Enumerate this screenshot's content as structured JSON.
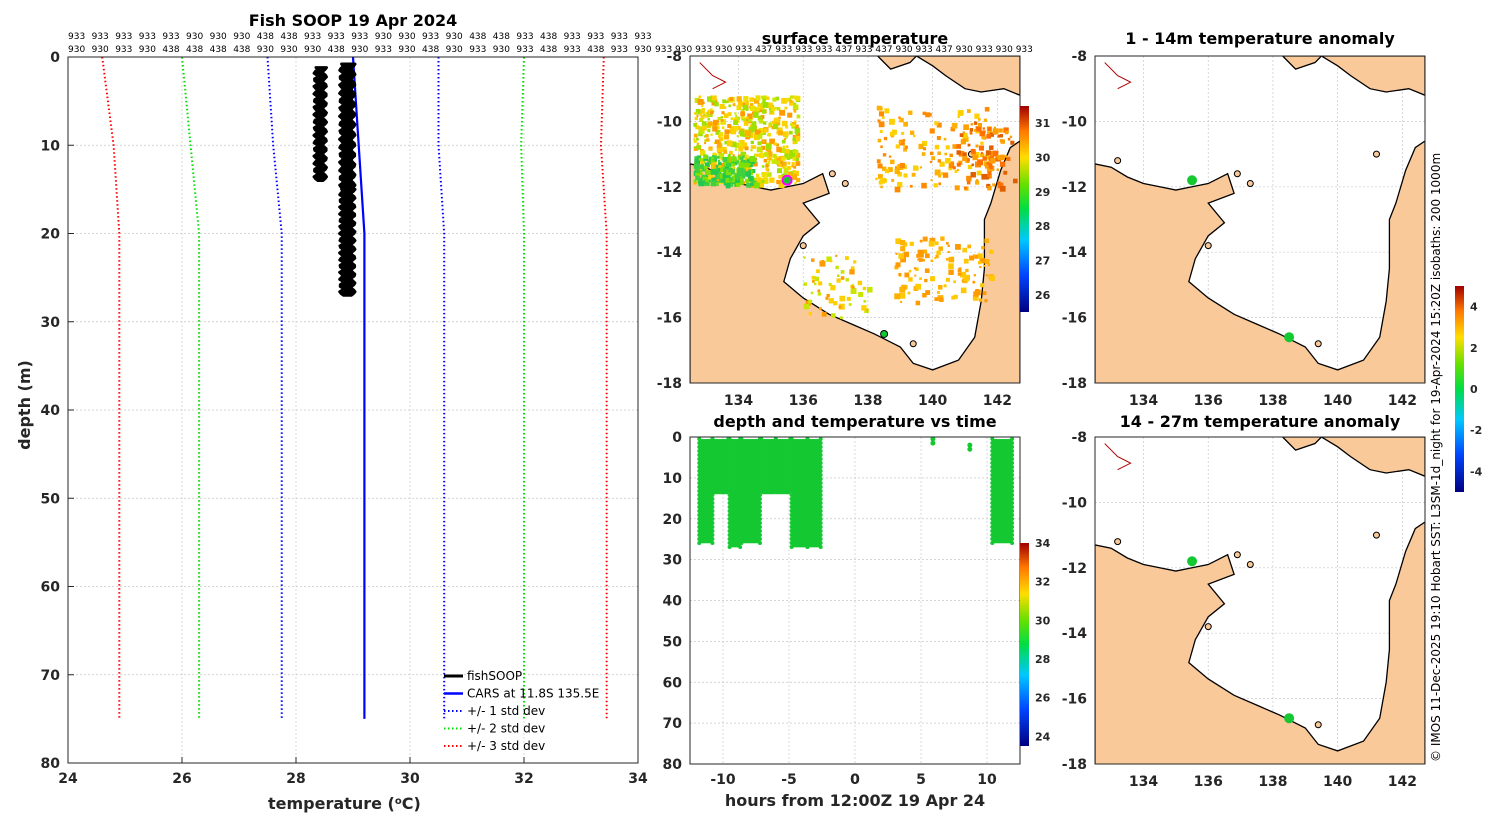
{
  "colors": {
    "cars": "#0000ff",
    "std1": "#0000ff",
    "std2": "#00dd00",
    "std3": "#ff0000",
    "fish": "#000000",
    "land": "#f9c99a",
    "obs": "#14c832"
  },
  "profile": {
    "chart_data": {
      "type": "line",
      "title": "Fish SOOP 19 Apr 2024",
      "xlabel": "temperature (°C)",
      "xlabel_main": "temperature (",
      "xlabel_sup": "o",
      "xlabel_end": "C)",
      "ylabel": "depth (m)",
      "xlim": [
        24,
        34
      ],
      "ylim": [
        80,
        0
      ],
      "xticks": [
        "24",
        "26",
        "28",
        "30",
        "32",
        "34"
      ],
      "yticks": [
        "0",
        "10",
        "20",
        "30",
        "40",
        "50",
        "60",
        "70",
        "80"
      ],
      "header_row1": [
        "933",
        "933",
        "933",
        "933",
        "933",
        "930",
        "930",
        "930",
        "438",
        "438",
        "933",
        "933",
        "933",
        "930",
        "930",
        "933",
        "930",
        "438",
        "438",
        "933",
        "438",
        "933",
        "933",
        "933",
        "933"
      ],
      "header_row2": [
        "930",
        "930",
        "933",
        "930",
        "438",
        "438",
        "438",
        "438",
        "930",
        "930",
        "930",
        "438",
        "930",
        "933",
        "930",
        "438",
        "930",
        "933",
        "930",
        "933",
        "438",
        "933",
        "438",
        "933",
        "930"
      ],
      "header_row2_overflow": "933 930 933 930 933 437 933 933 933 437 933 437 930 933 437 930 933 930 933",
      "series": [
        {
          "name": "CARS at 11.8S 135.5E",
          "style": "solid",
          "color": "#0000ff",
          "depth": [
            0,
            10,
            20,
            30,
            75
          ],
          "temp": [
            29.0,
            29.1,
            29.2,
            29.2,
            29.2
          ]
        },
        {
          "name": "+/- 1 std dev",
          "style": "dotted",
          "color": "#0000ff",
          "depth": [
            0,
            10,
            20,
            30,
            75
          ],
          "temp": [
            27.5,
            27.6,
            27.75,
            27.75,
            27.75
          ]
        },
        {
          "name": "+/- 1 std dev upper",
          "style": "dotted",
          "color": "#0000ff",
          "depth": [
            0,
            10,
            20,
            30,
            75
          ],
          "temp": [
            30.5,
            30.5,
            30.6,
            30.6,
            30.6
          ]
        },
        {
          "name": "+/- 2 std dev",
          "style": "dotted",
          "color": "#00dd00",
          "depth": [
            0,
            10,
            20,
            30,
            75
          ],
          "temp": [
            26.0,
            26.15,
            26.3,
            26.3,
            26.3
          ]
        },
        {
          "name": "+/- 2 std dev upper",
          "style": "dotted",
          "color": "#00dd00",
          "depth": [
            0,
            10,
            20,
            30,
            75
          ],
          "temp": [
            32.0,
            31.95,
            32.0,
            32.0,
            32.0
          ]
        },
        {
          "name": "+/- 3 std dev",
          "style": "dotted",
          "color": "#ff0000",
          "depth": [
            0,
            10,
            20,
            30,
            75
          ],
          "temp": [
            24.6,
            24.8,
            24.9,
            24.9,
            24.9
          ]
        },
        {
          "name": "+/- 3 std dev upper",
          "style": "dotted",
          "color": "#ff0000",
          "depth": [
            0,
            10,
            20,
            30,
            75
          ],
          "temp": [
            33.4,
            33.35,
            33.45,
            33.45,
            33.45
          ]
        }
      ],
      "fish_bands": [
        {
          "tmin": 28.35,
          "tmax": 28.5,
          "dmin": 1.2,
          "dmax": 14
        },
        {
          "tmin": 28.8,
          "tmax": 29.0,
          "dmin": 0.8,
          "dmax": 15
        },
        {
          "tmin": 28.8,
          "tmax": 29.0,
          "dmin": 15,
          "dmax": 27
        }
      ],
      "legend": [
        "fishSOOP",
        "CARS at 11.8S 135.5E",
        "+/- 1 std dev",
        "+/- 2 std dev",
        "+/- 3 std dev"
      ]
    }
  },
  "surface": {
    "title": "surface temperature",
    "xticks": [
      "134",
      "136",
      "138",
      "140",
      "142"
    ],
    "yticks": [
      "-8",
      "-10",
      "-12",
      "-14",
      "-16",
      "-18"
    ],
    "xlim": [
      132.5,
      142.7
    ],
    "ylim": [
      -18,
      -8
    ],
    "colorbar": {
      "ticks": [
        "31",
        "30",
        "29",
        "28",
        "27",
        "26"
      ],
      "range": [
        25.5,
        31.5
      ]
    },
    "marker_ring": {
      "lon": 135.5,
      "lat": -11.8
    },
    "marker_dot": {
      "lon": 138.5,
      "lat": -16.5
    }
  },
  "depthtime": {
    "chart_data": {
      "type": "scatter",
      "title": "depth and temperature vs time",
      "xlabel": "hours from 12:00Z 19 Apr 24",
      "xticks": [
        "-10",
        "-5",
        "0",
        "5",
        "10"
      ],
      "yticks": [
        "0",
        "10",
        "20",
        "30",
        "40",
        "50",
        "60",
        "70",
        "80"
      ],
      "xlim": [
        -12.5,
        12.5
      ],
      "ylim": [
        80,
        0
      ],
      "colorbar": {
        "ticks": [
          "34",
          "32",
          "30",
          "28",
          "26",
          "24"
        ],
        "range": [
          23.5,
          34
        ]
      },
      "casts": [
        {
          "t0": -11.8,
          "t1": -10.8,
          "dmax": 26
        },
        {
          "t0": -10.8,
          "t1": -9.6,
          "dmax": 14
        },
        {
          "t0": -9.5,
          "t1": -8.7,
          "dmax": 27
        },
        {
          "t0": -8.6,
          "t1": -7.2,
          "dmax": 26
        },
        {
          "t0": -7.1,
          "t1": -6.0,
          "dmax": 14
        },
        {
          "t0": -6.0,
          "t1": -4.9,
          "dmax": 14
        },
        {
          "t0": -4.8,
          "t1": -3.6,
          "dmax": 27
        },
        {
          "t0": -3.6,
          "t1": -2.6,
          "dmax": 27
        },
        {
          "t0": 10.4,
          "t1": 11.9,
          "dmax": 26
        }
      ],
      "points": [
        {
          "t": 5.9,
          "d": 0.5
        },
        {
          "t": 5.9,
          "d": 1.5
        },
        {
          "t": 8.7,
          "d": 2
        },
        {
          "t": 8.7,
          "d": 3
        }
      ]
    }
  },
  "anom1": {
    "title": "1 - 14m temperature anomaly",
    "xticks": [
      "134",
      "136",
      "138",
      "140",
      "142"
    ],
    "yticks": [
      "-8",
      "-10",
      "-12",
      "-14",
      "-16",
      "-18"
    ],
    "points": [
      {
        "lon": 135.5,
        "lat": -11.8
      },
      {
        "lon": 138.5,
        "lat": -16.6
      }
    ]
  },
  "anom2": {
    "title": "14 - 27m temperature anomaly",
    "xticks": [
      "134",
      "136",
      "138",
      "140",
      "142"
    ],
    "yticks": [
      "-8",
      "-10",
      "-12",
      "-14",
      "-16",
      "-18"
    ],
    "points": [
      {
        "lon": 135.5,
        "lat": -11.8
      },
      {
        "lon": 138.5,
        "lat": -16.6
      }
    ]
  },
  "anom_colorbar": {
    "ticks": [
      "4",
      "2",
      "0",
      "-2",
      "-4"
    ],
    "range": [
      -5,
      5
    ]
  },
  "credit": "© IMOS 11-Dec-2025 19:10 Hobart SST: L3SM-1d_night for 19-Apr-2024 15:20Z isobaths: 200  1000m"
}
